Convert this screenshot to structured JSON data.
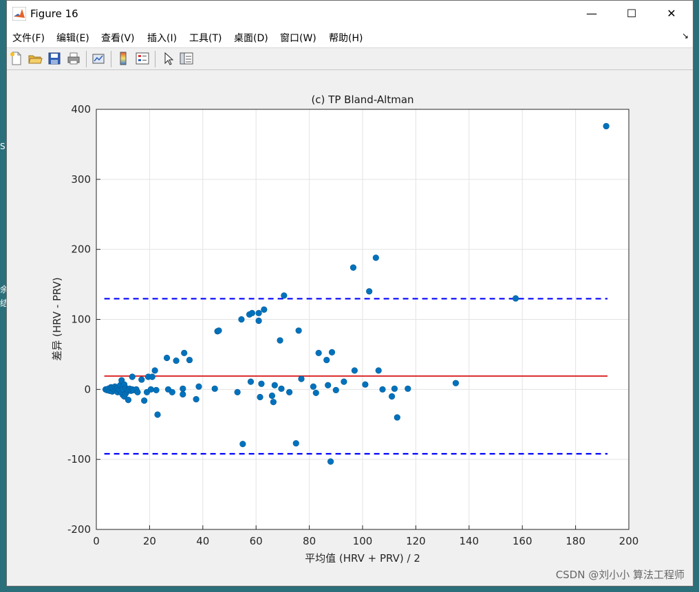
{
  "desktop": {
    "edge_glyphs": [
      "S",
      "余",
      "结"
    ]
  },
  "window": {
    "title": "Figure 16",
    "controls": {
      "minimize": "—",
      "maximize": "☐",
      "close": "✕"
    }
  },
  "menu": {
    "items": [
      "文件(F)",
      "编辑(E)",
      "查看(V)",
      "插入(I)",
      "工具(T)",
      "桌面(D)",
      "窗口(W)",
      "帮助(H)"
    ],
    "overflow_arrow": "↘"
  },
  "toolbar": {
    "icons": [
      "new-figure-icon",
      "open-file-icon",
      "save-icon",
      "print-icon",
      "link-plot-icon",
      "colorbar-icon",
      "legend-icon",
      "edit-plot-arrow-icon",
      "property-inspector-icon"
    ]
  },
  "chart_data": {
    "type": "scatter",
    "title": "(c) TP Bland-Altman",
    "xlabel": "平均值 (HRV + PRV) / 2",
    "ylabel": "差异 (HRV - PRV)",
    "xlim": [
      0,
      200
    ],
    "ylim": [
      -200,
      400
    ],
    "xticks": [
      "0",
      "20",
      "40",
      "60",
      "80",
      "100",
      "120",
      "140",
      "160",
      "180",
      "200"
    ],
    "yticks": [
      "-200",
      "-100",
      "0",
      "100",
      "200",
      "300",
      "400"
    ],
    "grid": true,
    "marker_color": "#0072bd",
    "mean_line": {
      "value": 19,
      "x_range": [
        3,
        192
      ],
      "color": "#d40000",
      "style": "solid"
    },
    "limits_of_agreement": [
      {
        "value": 129.5,
        "x_range": [
          3,
          192
        ],
        "color": "#0000ff",
        "style": "dashed"
      },
      {
        "value": -92,
        "x_range": [
          3,
          192
        ],
        "color": "#0000ff",
        "style": "dashed"
      }
    ],
    "points": [
      [
        3.5,
        0
      ],
      [
        4,
        -1
      ],
      [
        4.5,
        1
      ],
      [
        5,
        -2
      ],
      [
        5.5,
        3
      ],
      [
        6,
        -3
      ],
      [
        6,
        2
      ],
      [
        6.5,
        0
      ],
      [
        7,
        -1
      ],
      [
        7,
        4
      ],
      [
        7.5,
        1
      ],
      [
        8,
        -4
      ],
      [
        8,
        2
      ],
      [
        8.5,
        0
      ],
      [
        9,
        -2
      ],
      [
        9,
        6
      ],
      [
        9.5,
        -5
      ],
      [
        9.5,
        13
      ],
      [
        10,
        -8
      ],
      [
        10,
        4
      ],
      [
        10,
        0
      ],
      [
        10.5,
        -10
      ],
      [
        10.5,
        7
      ],
      [
        11,
        -6
      ],
      [
        11,
        2
      ],
      [
        11.5,
        -3
      ],
      [
        11.5,
        0
      ],
      [
        12,
        -15
      ],
      [
        12,
        -1
      ],
      [
        12.5,
        1
      ],
      [
        13,
        -2
      ],
      [
        13.5,
        0
      ],
      [
        13.5,
        18
      ],
      [
        14,
        -1
      ],
      [
        15,
        0
      ],
      [
        15.5,
        -4
      ],
      [
        17,
        14
      ],
      [
        18,
        -16
      ],
      [
        19,
        -4
      ],
      [
        19.5,
        18
      ],
      [
        20.5,
        0
      ],
      [
        21,
        18
      ],
      [
        22,
        27
      ],
      [
        22.5,
        -1
      ],
      [
        23,
        -36
      ],
      [
        26.5,
        45
      ],
      [
        27,
        0
      ],
      [
        28.5,
        -4
      ],
      [
        30,
        41
      ],
      [
        32.5,
        1
      ],
      [
        32.5,
        -7
      ],
      [
        33,
        52
      ],
      [
        35,
        42
      ],
      [
        37.5,
        -14
      ],
      [
        38.5,
        4
      ],
      [
        44.5,
        1
      ],
      [
        45.5,
        83
      ],
      [
        46,
        84
      ],
      [
        53,
        -4
      ],
      [
        54.5,
        100
      ],
      [
        55,
        -78
      ],
      [
        57.5,
        107
      ],
      [
        58,
        11
      ],
      [
        58.5,
        109
      ],
      [
        61,
        109
      ],
      [
        61,
        98
      ],
      [
        61.5,
        -11
      ],
      [
        62,
        8
      ],
      [
        63,
        114
      ],
      [
        66,
        -9
      ],
      [
        66.5,
        -18
      ],
      [
        67,
        6
      ],
      [
        69,
        70
      ],
      [
        69.5,
        1
      ],
      [
        70.5,
        134
      ],
      [
        72.5,
        -4
      ],
      [
        75,
        -77
      ],
      [
        76,
        84
      ],
      [
        77,
        15
      ],
      [
        81.5,
        4
      ],
      [
        82.5,
        -5
      ],
      [
        83.5,
        52
      ],
      [
        86.5,
        42
      ],
      [
        87,
        6
      ],
      [
        88,
        -103
      ],
      [
        88.5,
        53
      ],
      [
        90,
        -1
      ],
      [
        93,
        11
      ],
      [
        96.5,
        174
      ],
      [
        97,
        27
      ],
      [
        101,
        7
      ],
      [
        102.5,
        140
      ],
      [
        105,
        188
      ],
      [
        106,
        27
      ],
      [
        107.5,
        0
      ],
      [
        111,
        -10
      ],
      [
        112,
        1
      ],
      [
        113,
        -40
      ],
      [
        117,
        1
      ],
      [
        135,
        9
      ],
      [
        157.5,
        130
      ],
      [
        191.5,
        376
      ]
    ]
  },
  "watermark": "CSDN @刘小小 算法工程师"
}
